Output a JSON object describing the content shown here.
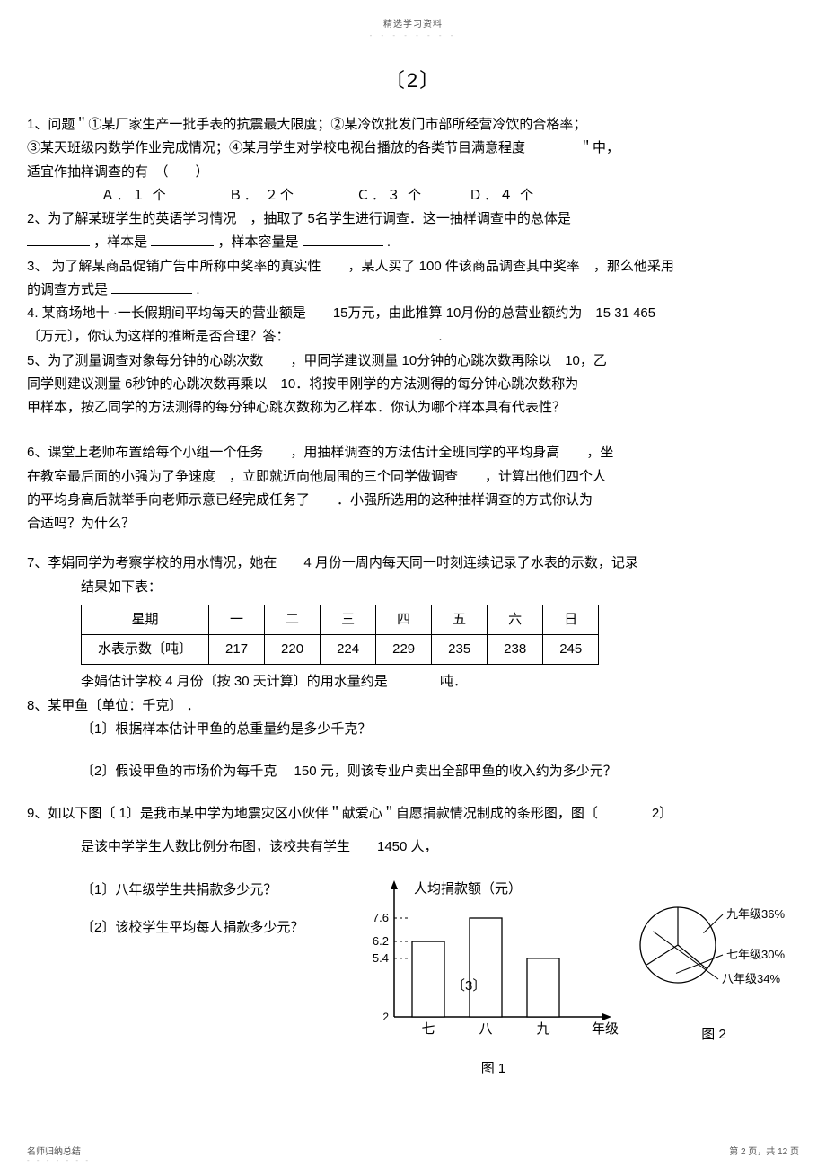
{
  "header": {
    "text": "精选学习资料",
    "dots": "- - - - - - - -"
  },
  "section": {
    "label": "〔2〕"
  },
  "q1": {
    "line1": "1、问题＂①某厂家生产一批手表的抗震最大限度；②某冷饮批发门市部所经营冷饮的合格率；",
    "line2": "③某天班级内数学作业完成情况；④某月学生对学校电视台播放的各类节目满意程度　　　　＂中，",
    "line3": "适宜作抽样调查的有　（　　）",
    "options": "Ａ．１ 个　　　　Ｂ． ２个　　　　Ｃ．３ 个　　　Ｄ．４ 个"
  },
  "q2": {
    "line1": "2、为了解某班学生的英语学习情况　，抽取了 5名学生进行调查．这一抽样调查中的总体是",
    "line2_a": "，样本是 ",
    "line2_b": "，样本容量是 ",
    "line2_c": " ."
  },
  "q3": {
    "line1": "3、 为了解某商品促销广告中所称中奖率的真实性　　，某人买了  100 件该商品调查其中奖率　，那么他采用",
    "line2": "的调查方式是  ",
    "dot": " ."
  },
  "q4": {
    "line1": "4. 某商场地十 ·一长假期间平均每天的营业额是　　15万元，由此推算 10月份的总营业额约为　15  31  465",
    "line2": "〔万元〕，你认为这样的推断是否合理？答：　",
    "dot": " ."
  },
  "q5": {
    "l1": "5、为了测量调查对象每分钟的心跳次数　　，甲同学建议测量  10分钟的心跳次数再除以　10，乙",
    "l2": "同学则建议测量  6秒钟的心跳次数再乘以　10．将按甲刚学的方法测得的每分钟心跳次数称为",
    "l3": "甲样本，按乙同学的方法测得的每分钟心跳次数称为乙样本．你认为哪个样本具有代表性？"
  },
  "q6": {
    "l1": "6、课堂上老师布置给每个小组一个任务　　，用抽样调查的方法估计全班同学的平均身高　　，坐",
    "l2": "在教室最后面的小强为了争速度　，立即就近向他周围的三个同学做调查　　，计算出他们四个人",
    "l3": "的平均身高后就举手向老师示意已经完成任务了　　．小强所选用的这种抽样调查的方式你认为",
    "l4": "合适吗？为什么？"
  },
  "q7": {
    "l1": "7、李娟同学为考察学校的用水情况，她在　　4 月份一周内每天同一时刻连续记录了水表的示数，记录",
    "l2": "结果如下表：",
    "table": {
      "header": [
        "星期",
        "一",
        "二",
        "三",
        "四",
        "五",
        "六",
        "日"
      ],
      "row2": [
        "水表示数〔吨〕",
        "217",
        "220",
        "224",
        "229",
        "235",
        "238",
        "245"
      ]
    },
    "l3a": "李娟估计学校  4 月份〔按  30 天计算〕的用水量约是  ",
    "l3b": "吨．"
  },
  "q8": {
    "l1": "8、某甲鱼〔单位：千克〕  ．",
    "l2": "〔1〕根据样本估计甲鱼的总重量约是多少千克？",
    "l3": "〔2〕假设甲鱼的市场价为每千克　  150 元，则该专业户卖出全部甲鱼的收入约为多少元？"
  },
  "q9": {
    "l1": "9、如以下图〔  1〕是我市某中学为地震灾区小伙伴＂献爱心＂自愿捐款情况制成的条形图，图〔　　　　2〕",
    "l2": "是该中学学生人数比例分布图，该校共有学生　　1450 人，",
    "sub1": "〔1〕八年级学生共捐款多少元？",
    "sub2": "〔2〕该校学生平均每人捐款多少元？",
    "chart1": {
      "title": "人均捐款额（元）",
      "y_ticks": [
        "7.6",
        "6.2",
        "5.4"
      ],
      "y_min_label": "2",
      "x_label": "年级",
      "x_ticks": [
        "七",
        "八",
        "九"
      ],
      "bars": [
        {
          "label": "七",
          "height": 58
        },
        {
          "label": "八",
          "height": 76
        },
        {
          "label": "九",
          "height": 45
        }
      ],
      "inner_label": "〔3〕",
      "colors": {
        "axis": "#000000",
        "bar_fill": "#ffffff",
        "bar_stroke": "#000000",
        "tick": "#000000",
        "dash": "#000000"
      },
      "caption": "图 1"
    },
    "chart2": {
      "slices": [
        {
          "label": "九年级36%",
          "pct": 36
        },
        {
          "label": "七年级30%",
          "pct": 30
        },
        {
          "label": "八年级34%",
          "pct": 34
        }
      ],
      "colors": {
        "stroke": "#000000",
        "fill": "#ffffff",
        "text": "#000000"
      },
      "caption": "图 2"
    }
  },
  "footer": {
    "left": "名师归纳总结",
    "left_dots": "- - - - - - -",
    "right": "第 2 页，共 12 页"
  }
}
